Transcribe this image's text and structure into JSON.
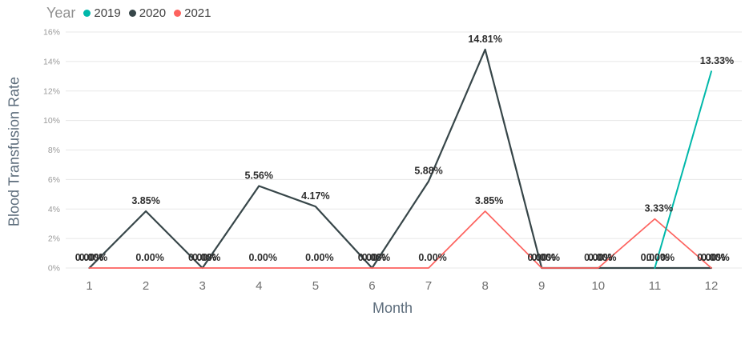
{
  "legend": {
    "title": "Year",
    "items": [
      {
        "label": "2019",
        "color": "#01B8AA"
      },
      {
        "label": "2020",
        "color": "#374649"
      },
      {
        "label": "2021",
        "color": "#FD625E"
      }
    ]
  },
  "chart_data": {
    "type": "line",
    "title": "",
    "xlabel": "Month",
    "ylabel": "Blood Transfusion Rate",
    "x_ticks": [
      "1",
      "2",
      "3",
      "4",
      "5",
      "6",
      "7",
      "8",
      "9",
      "10",
      "11",
      "12"
    ],
    "y_ticks": [
      "0%",
      "2%",
      "4%",
      "6%",
      "8%",
      "10%",
      "12%",
      "14%",
      "16%"
    ],
    "ylim": [
      0,
      16
    ],
    "grid": true,
    "legend_position": "top-left",
    "data_labels_shown": true,
    "series": [
      {
        "name": "2019",
        "color": "#01B8AA",
        "x": [
          11,
          12
        ],
        "values": [
          0.0,
          13.33
        ],
        "labels": [
          "0.00%",
          "13.33%"
        ]
      },
      {
        "name": "2020",
        "color": "#374649",
        "x": [
          1,
          2,
          3,
          4,
          5,
          6,
          7,
          8,
          9,
          10,
          11,
          12
        ],
        "values": [
          0.0,
          3.85,
          0.0,
          5.56,
          4.17,
          0.0,
          5.88,
          14.81,
          0.0,
          0.0,
          0.0,
          0.0
        ],
        "labels": [
          "0.00%",
          "3.85%",
          "0.00%",
          "5.56%",
          "4.17%",
          "0.00%",
          "5.88%",
          "14.81%",
          "0.00%",
          "0.00%",
          "0.00%",
          "0.00%"
        ]
      },
      {
        "name": "2021",
        "color": "#FD625E",
        "x": [
          1,
          2,
          3,
          4,
          5,
          6,
          7,
          8,
          9,
          10,
          11,
          12
        ],
        "values": [
          0.0,
          0.0,
          0.0,
          0.0,
          0.0,
          0.0,
          0.0,
          3.85,
          0.0,
          0.0,
          3.33,
          0.0
        ],
        "labels": [
          "0.00%",
          "0.00%",
          "0.00%",
          "0.00%",
          "0.00%",
          "0.00%",
          "0.00%",
          "3.85%",
          "0.00%",
          "0.00%",
          "3.33%",
          "0.00%"
        ]
      }
    ],
    "colors": {
      "gridline": "#e7e7e7",
      "y_tick_label": "#9a9a9a",
      "x_tick_label": "#6e6e6e",
      "axis_title": "#5d6d7c",
      "data_label": "#2d2d2d"
    }
  }
}
